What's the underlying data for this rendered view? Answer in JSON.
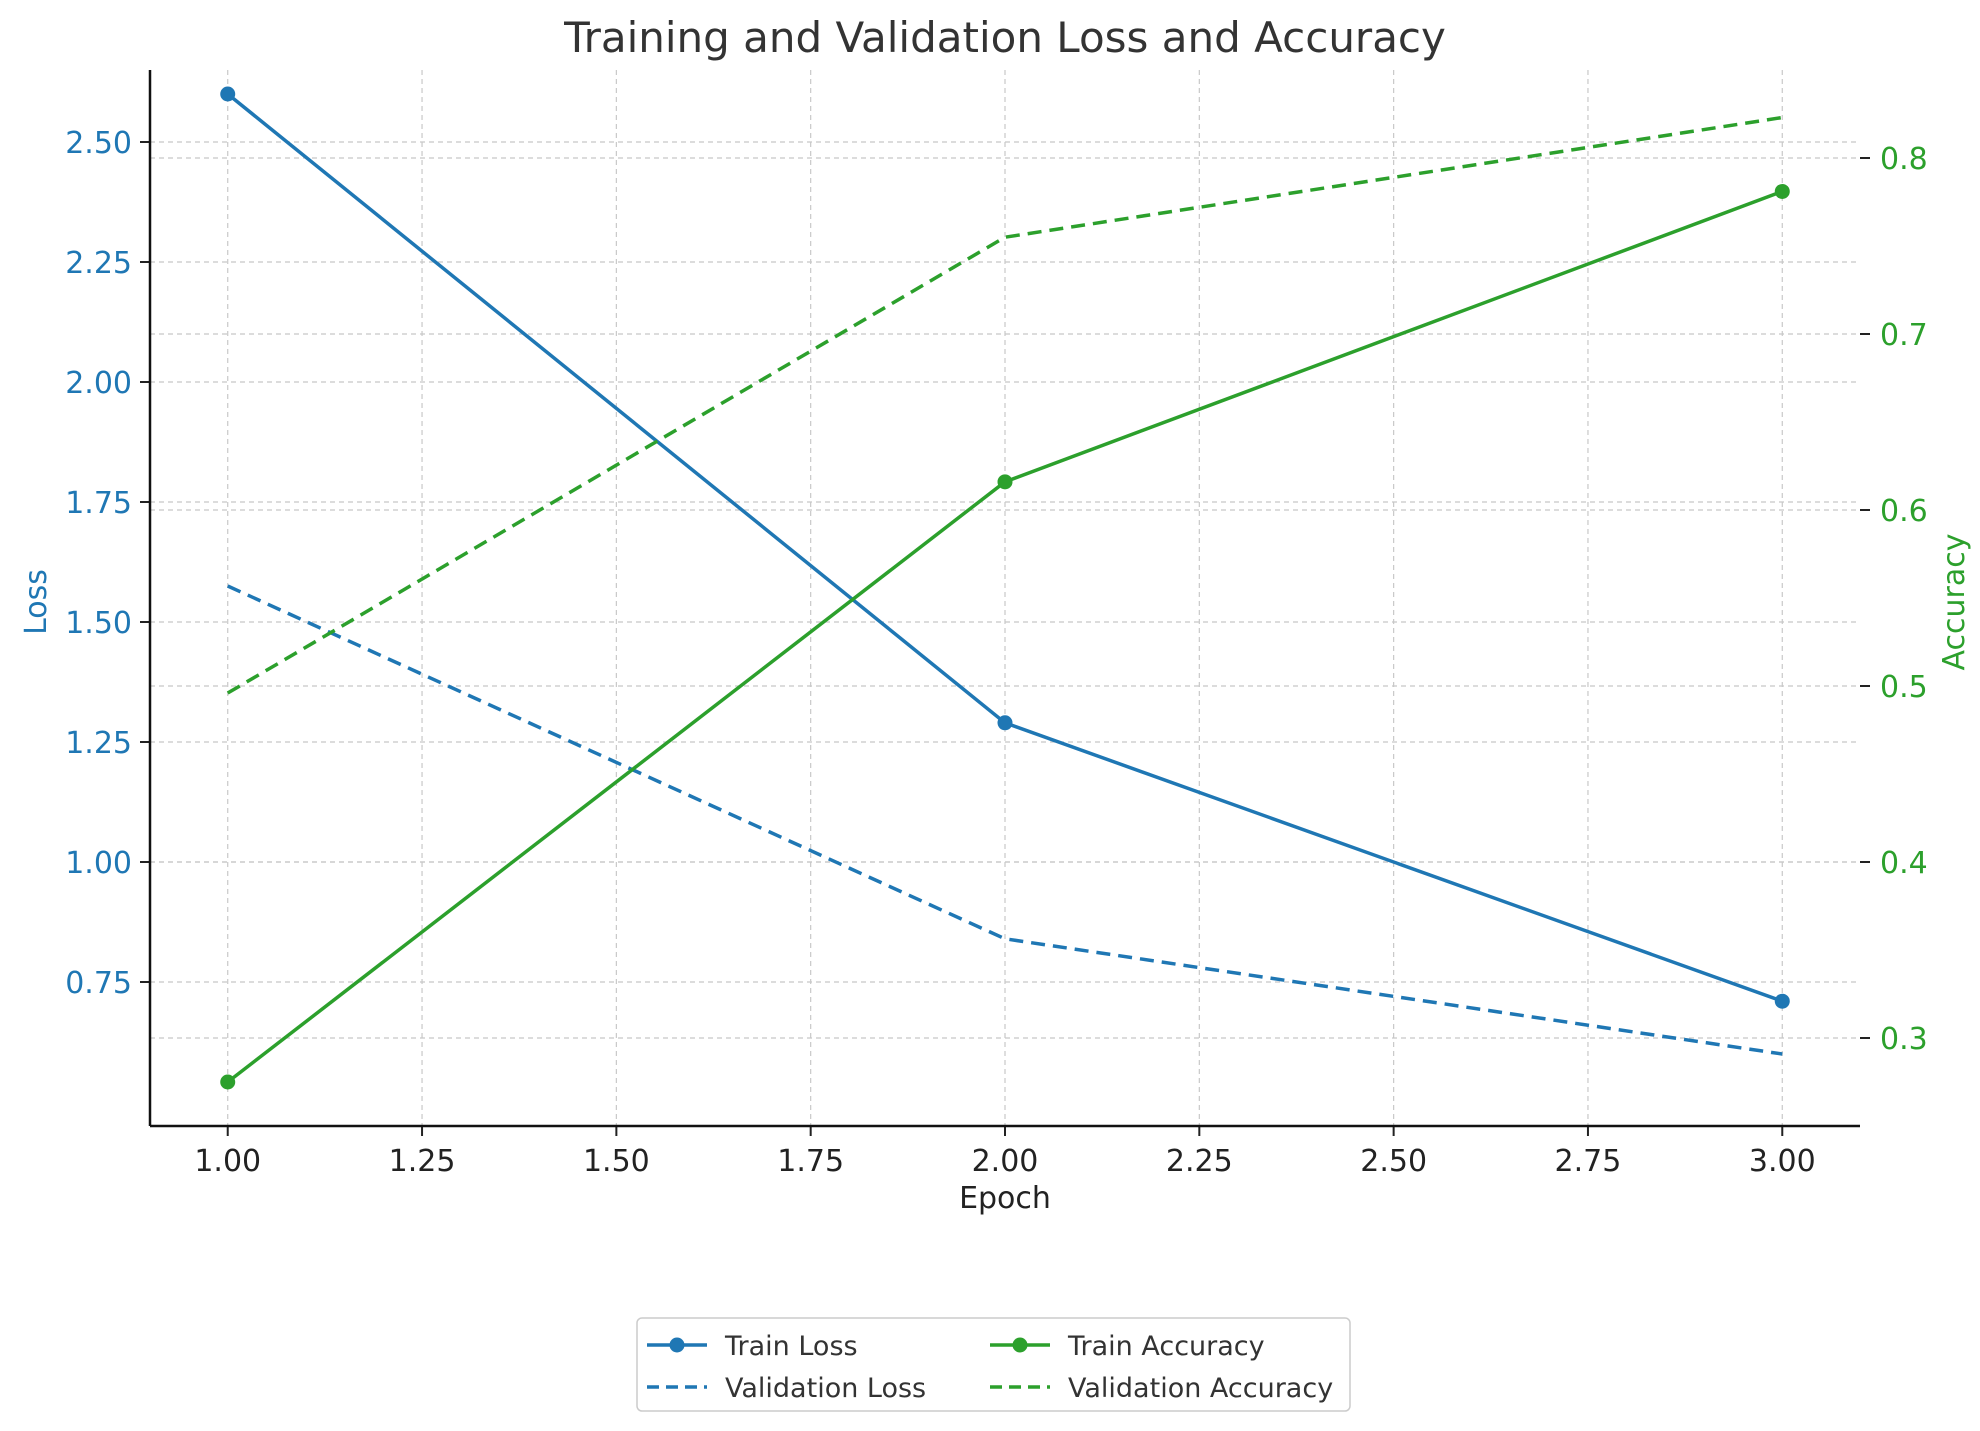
{
  "chart_data": {
    "type": "line",
    "title": "Training and Validation Loss and Accuracy",
    "xlabel": "Epoch",
    "y_left_label": "Loss",
    "y_right_label": "Accuracy",
    "x": [
      1,
      2,
      3
    ],
    "xlim": [
      0.9,
      3.1
    ],
    "y_left_lim": [
      0.45,
      2.65
    ],
    "y_right_lim": [
      0.25,
      0.85
    ],
    "x_ticks": [
      "1.00",
      "1.25",
      "1.50",
      "1.75",
      "2.00",
      "2.25",
      "2.50",
      "2.75",
      "3.00"
    ],
    "y_left_ticks": [
      "0.75",
      "1.00",
      "1.25",
      "1.50",
      "1.75",
      "2.00",
      "2.25",
      "2.50"
    ],
    "y_right_ticks": [
      "0.3",
      "0.4",
      "0.5",
      "0.6",
      "0.7",
      "0.8"
    ],
    "grid": true,
    "legend_position": "bottom-center",
    "colors": {
      "loss": "#1f77b4",
      "accuracy": "#2ca02c"
    },
    "series": [
      {
        "name": "Train Loss",
        "axis": "left",
        "style": "solid",
        "markers": true,
        "values": [
          2.6,
          1.29,
          0.71
        ]
      },
      {
        "name": "Validation Loss",
        "axis": "left",
        "style": "dashed",
        "markers": false,
        "values": [
          1.575,
          0.84,
          0.6
        ]
      },
      {
        "name": "Train Accuracy",
        "axis": "right",
        "style": "solid",
        "markers": true,
        "values": [
          0.275,
          0.616,
          0.781
        ]
      },
      {
        "name": "Validation Accuracy",
        "axis": "right",
        "style": "dashed",
        "markers": false,
        "values": [
          0.496,
          0.755,
          0.823
        ]
      }
    ]
  }
}
